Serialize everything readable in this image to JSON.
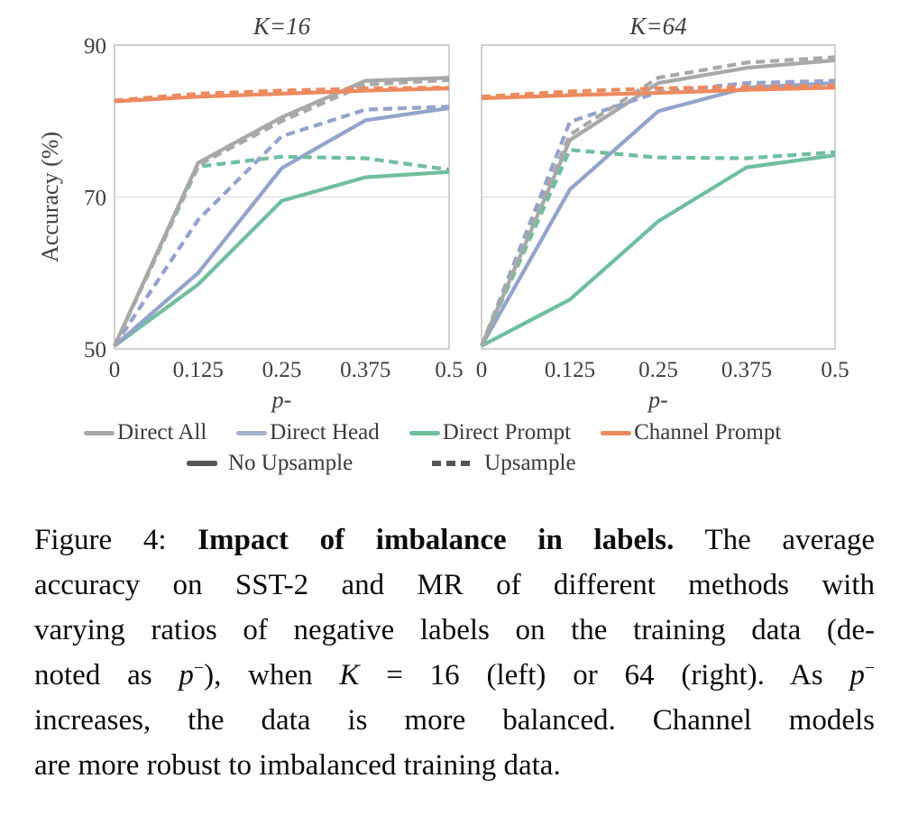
{
  "chart_data": [
    {
      "type": "line",
      "title": "K=16",
      "xlabel": "p-",
      "ylabel": "Accuracy (%)",
      "xlim": [
        0,
        0.5
      ],
      "ylim": [
        50,
        90
      ],
      "x": [
        0,
        0.125,
        0.25,
        0.375,
        0.5
      ],
      "xtick_labels": [
        "0",
        "0.125",
        "0.25",
        "0.375",
        "0.5"
      ],
      "yticks": [
        50,
        70,
        90
      ],
      "show_y_axis": true,
      "grid": "horizontal",
      "legend_position": "below",
      "series": [
        {
          "name": "Direct Prompt",
          "variant": "No Upsample",
          "color": "#6fbf9d",
          "dash": false,
          "values": [
            50.4,
            58.5,
            69.5,
            72.6,
            73.3
          ]
        },
        {
          "name": "Direct Head",
          "variant": "No Upsample",
          "color": "#93a3cd",
          "dash": false,
          "values": [
            50.4,
            60.0,
            73.8,
            80.1,
            81.7
          ]
        },
        {
          "name": "Direct All",
          "variant": "No Upsample",
          "color": "#a8a8a8",
          "dash": false,
          "values": [
            50.4,
            74.5,
            80.5,
            85.3,
            85.7
          ]
        },
        {
          "name": "Direct Prompt",
          "variant": "Upsample",
          "color": "#6fbf9d",
          "dash": true,
          "values": [
            50.4,
            74.0,
            75.3,
            75.1,
            73.6
          ]
        },
        {
          "name": "Direct Head",
          "variant": "Upsample",
          "color": "#93a3cd",
          "dash": true,
          "values": [
            50.4,
            67.0,
            78.0,
            81.5,
            81.9
          ]
        },
        {
          "name": "Direct All",
          "variant": "Upsample",
          "color": "#a8a8a8",
          "dash": true,
          "values": [
            50.4,
            74.2,
            80.0,
            84.8,
            85.4
          ]
        },
        {
          "name": "Channel Prompt",
          "variant": "No Upsample",
          "color": "#ec8a5e",
          "dash": false,
          "values": [
            82.6,
            83.2,
            83.6,
            84.0,
            84.3
          ]
        },
        {
          "name": "Channel Prompt",
          "variant": "Upsample",
          "color": "#ec8a5e",
          "dash": true,
          "values": [
            82.7,
            83.6,
            84.0,
            84.3,
            84.4
          ]
        }
      ]
    },
    {
      "type": "line",
      "title": "K=64",
      "xlabel": "p-",
      "ylabel": "Accuracy (%)",
      "xlim": [
        0,
        0.5
      ],
      "ylim": [
        50,
        90
      ],
      "x": [
        0,
        0.125,
        0.25,
        0.375,
        0.5
      ],
      "xtick_labels": [
        "0",
        "0.125",
        "0.25",
        "0.375",
        "0.5"
      ],
      "yticks": [
        50,
        70,
        90
      ],
      "show_y_axis": false,
      "grid": "horizontal",
      "legend_position": "below",
      "series": [
        {
          "name": "Direct Prompt",
          "variant": "No Upsample",
          "color": "#6fbf9d",
          "dash": false,
          "values": [
            50.4,
            56.5,
            66.8,
            73.9,
            75.5
          ]
        },
        {
          "name": "Direct Head",
          "variant": "No Upsample",
          "color": "#93a3cd",
          "dash": false,
          "values": [
            50.4,
            71.0,
            81.3,
            84.4,
            85.0
          ]
        },
        {
          "name": "Direct All",
          "variant": "No Upsample",
          "color": "#a8a8a8",
          "dash": false,
          "values": [
            50.4,
            77.5,
            85.0,
            87.0,
            88.0
          ]
        },
        {
          "name": "Direct Prompt",
          "variant": "Upsample",
          "color": "#6fbf9d",
          "dash": true,
          "values": [
            50.4,
            76.2,
            75.2,
            75.1,
            75.9
          ]
        },
        {
          "name": "Direct Head",
          "variant": "Upsample",
          "color": "#93a3cd",
          "dash": true,
          "values": [
            50.4,
            79.9,
            83.8,
            85.0,
            85.3
          ]
        },
        {
          "name": "Direct All",
          "variant": "Upsample",
          "color": "#a8a8a8",
          "dash": true,
          "values": [
            50.4,
            78.2,
            85.7,
            87.7,
            88.4
          ]
        },
        {
          "name": "Channel Prompt",
          "variant": "No Upsample",
          "color": "#ec8a5e",
          "dash": false,
          "values": [
            83.0,
            83.4,
            83.7,
            84.1,
            84.4
          ]
        },
        {
          "name": "Channel Prompt",
          "variant": "Upsample",
          "color": "#ec8a5e",
          "dash": true,
          "values": [
            83.2,
            83.9,
            84.3,
            84.5,
            84.7
          ]
        }
      ]
    }
  ],
  "legend": {
    "row1": [
      {
        "label": "Direct All",
        "color": "#a8a8a8"
      },
      {
        "label": "Direct Head",
        "color": "#a3b0d4"
      },
      {
        "label": "Direct Prompt",
        "color": "#6fbf9d"
      },
      {
        "label": "Channel Prompt",
        "color": "#ec8a5e"
      }
    ],
    "row2": [
      {
        "label": "No Upsample",
        "color": "#555555",
        "dash": false
      },
      {
        "label": "Upsample",
        "color": "#555555",
        "dash": true
      }
    ]
  },
  "caption": {
    "line1": {
      "a": "Figure 4: ",
      "b": "Impact of imbalance in labels.",
      "c": " The average"
    },
    "line2": "accuracy on SST-2 and MR of different methods with",
    "line3": "varying ratios of negative labels on the training data (de-",
    "line4": {
      "a": "noted as ",
      "p1": "p",
      "s1": "−",
      "b": "), when ",
      "k": "K",
      "c": " = 16 (left) or 64 (right). As ",
      "p2": "p",
      "s2": "−"
    },
    "line5": "increases, the data is more balanced. Channel models",
    "line6": "are more robust to imbalanced training data."
  },
  "colors": {
    "plot_border": "#bdbdbd",
    "gridline": "#d9d9d9",
    "axis_text": "#3f3f3f",
    "caption_text": "#0b0b0b"
  }
}
